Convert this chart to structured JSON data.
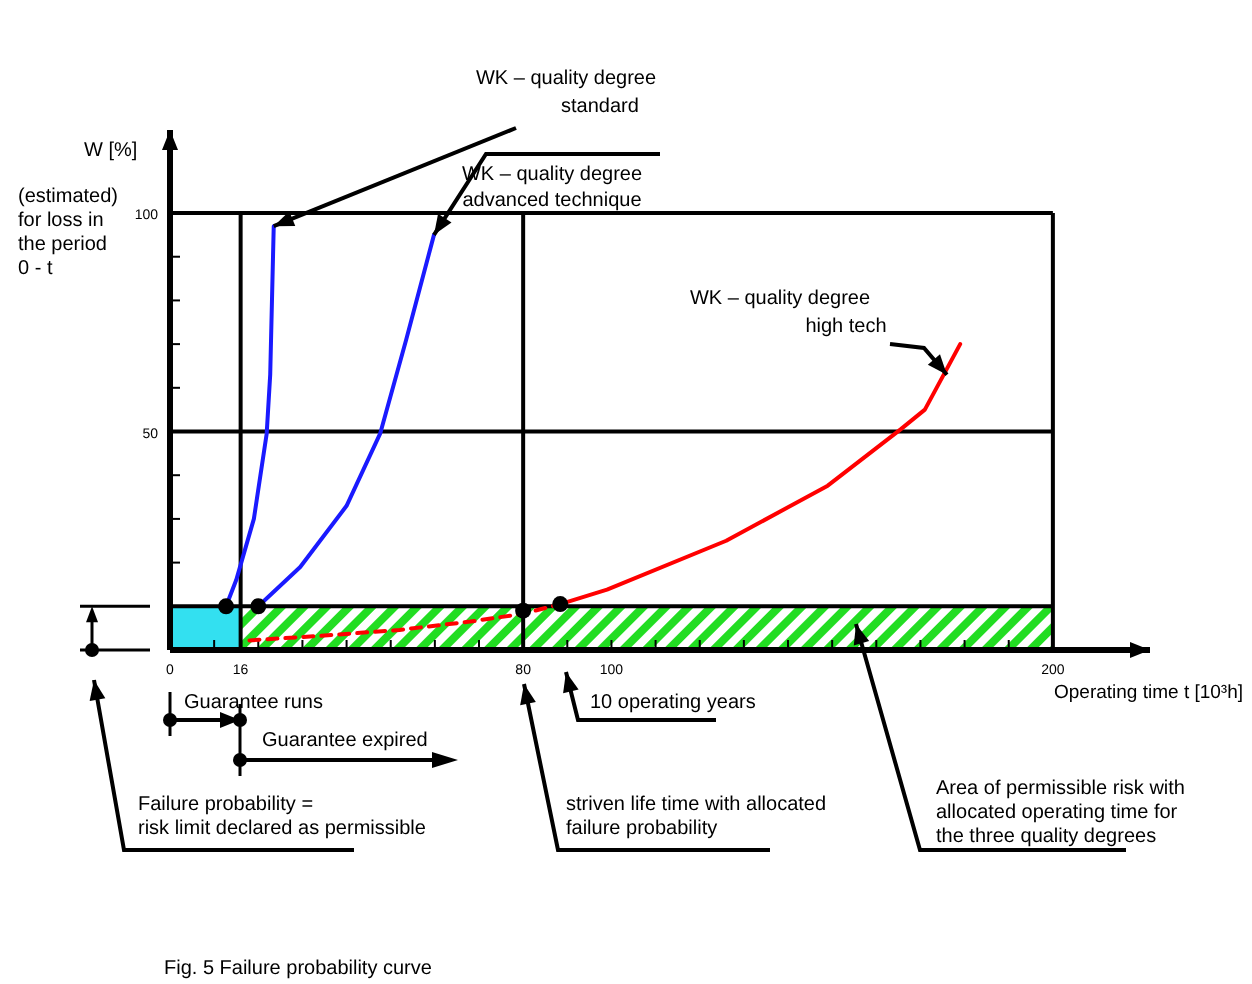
{
  "chart_data": {
    "type": "line",
    "title": "Fig. 5 Failure probability curve",
    "xlabel": "Operating time t [10³h]",
    "ylabel": "W [%]",
    "xlim": [
      0,
      222
    ],
    "ylim": [
      0,
      119
    ],
    "xticks": [
      0,
      {
        "value": 10,
        "label": null
      },
      16,
      {
        "value": 20,
        "label": null
      },
      {
        "value": 30,
        "label": null
      },
      {
        "value": 40,
        "label": null
      },
      {
        "value": 50,
        "label": null
      },
      {
        "value": 60,
        "label": null
      },
      {
        "value": 70,
        "label": null
      },
      80,
      {
        "value": 90,
        "label": null
      },
      100,
      {
        "value": 110,
        "label": null
      },
      {
        "value": 120,
        "label": null
      },
      {
        "value": 130,
        "label": null
      },
      {
        "value": 140,
        "label": null
      },
      {
        "value": 150,
        "label": null
      },
      {
        "value": 160,
        "label": null
      },
      {
        "value": 170,
        "label": null
      },
      {
        "value": 180,
        "label": null
      },
      {
        "value": 190,
        "label": null
      },
      200
    ],
    "yticks": [
      {
        "value": 10,
        "label": null
      },
      {
        "value": 20,
        "label": null
      },
      {
        "value": 30,
        "label": null
      },
      {
        "value": 40,
        "label": null
      },
      50,
      {
        "value": 60,
        "label": null
      },
      {
        "value": 70,
        "label": null
      },
      {
        "value": 80,
        "label": null
      },
      {
        "value": 90,
        "label": null
      },
      100
    ],
    "series": [
      {
        "color": "#1a1aff",
        "x": [
          12.7,
          15,
          19,
          21.9,
          22.7,
          23.5
        ],
        "values": [
          10,
          16,
          30,
          49.5,
          63,
          97
        ]
      },
      {
        "color": "#1a1aff",
        "x": [
          20,
          29.5,
          40,
          47.6,
          53.5,
          59.8
        ],
        "values": [
          10,
          19,
          33,
          49.5,
          71,
          95
        ]
      },
      {
        "color": "#ff0000",
        "x": [
          88.4,
          99,
          126,
          149,
          165.5,
          171,
          179
        ],
        "values": [
          10.5,
          13.8,
          25,
          37.6,
          50.5,
          55,
          70
        ]
      },
      {
        "type": "line",
        "color": "#ff0000",
        "line_style": "dashed",
        "x": [
          18,
          35,
          52,
          68,
          80,
          88.4
        ],
        "values": [
          2.2,
          3.3,
          4.6,
          6.5,
          8.3,
          10.5
        ]
      },
      {
        "type": "scatter",
        "color": "#000000",
        "marker": "circle",
        "x": [
          12.7,
          20,
          80,
          88.4
        ],
        "values": [
          10,
          10,
          9,
          10.5
        ]
      }
    ],
    "ref_lines": [
      {
        "axis": "y",
        "value": 10
      },
      {
        "axis": "y",
        "value": 50
      },
      {
        "axis": "y",
        "value": 100
      },
      {
        "axis": "x",
        "value": 16
      },
      {
        "axis": "x",
        "value": 80
      },
      {
        "axis": "x",
        "value": 200
      }
    ],
    "bands": [
      {
        "axis": "x",
        "from": 0,
        "to": 16,
        "color": "#33e0f0"
      },
      {
        "axis": "x",
        "from": 16,
        "to": 200,
        "color": "#22dd22"
      }
    ],
    "annotations": [
      {
        "text": "WK – quality degree\nstandard",
        "x": 23.5,
        "y": 97
      },
      {
        "text": "WK – quality degree\nadvanced technique",
        "x": 59.8,
        "y": 95
      },
      {
        "text": "WK – quality degree\nhigh tech",
        "x": 176,
        "y": 63
      },
      "10 operating years",
      "striven life time with allocated\nfailure probability",
      "Area of permissible risk with\nallocated operating time for\nthe three quality degrees",
      "Failure probability =\nrisk limit declared as permissible",
      "Guarantee runs",
      "Guarantee expired",
      "(estimated)\nfor loss in\nthe period\n0 - t"
    ]
  }
}
